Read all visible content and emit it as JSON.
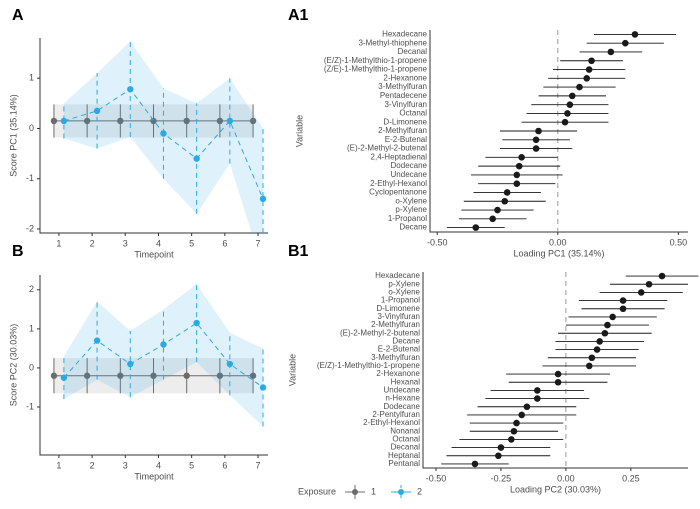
{
  "chart_data": [
    {
      "type": "line",
      "title": "A",
      "x_label": "Timepoint",
      "y_label": "Score PC1 (35.14%)",
      "x": [
        1,
        2,
        3,
        4,
        5,
        6,
        7
      ],
      "xlim": [
        0.43,
        7.3
      ],
      "xticks": [
        1,
        2,
        3,
        4,
        5,
        6,
        7
      ],
      "ylim": [
        -2.08,
        1.8
      ],
      "yticks": [
        -2,
        -1,
        0,
        1
      ],
      "series": [
        {
          "color": "#6b6b6b",
          "line_style": "solid",
          "values": [
            0.15,
            0.15,
            0.15,
            0.15,
            0.15,
            0.15,
            0.15
          ],
          "errors": [
            0.33,
            0.33,
            0.33,
            0.33,
            0.33,
            0.33,
            0.33
          ]
        },
        {
          "color": "#29abe2",
          "line_style": "dashed",
          "values": [
            0.15,
            0.35,
            0.78,
            -0.1,
            -0.6,
            0.15,
            -1.4
          ],
          "errors": [
            0.35,
            0.75,
            0.95,
            0.9,
            1.1,
            0.85,
            1.4
          ]
        }
      ]
    },
    {
      "type": "forest",
      "title": "A1",
      "x_label": "Loading PC1 (35.14%)",
      "y_label": "Variable",
      "color": "#1a1a1a",
      "categories": [
        "Hexadecane",
        "3-Methyl-thiophene",
        "Decanal",
        "(E/Z)-1-Methylthio-1-propene",
        "(Z/E)-1-Methylthio-1-propene",
        "2-Hexanone",
        "3-Methylfuran",
        "Pentadecene",
        "3-Vinylfuran",
        "Octanal",
        "D-Limonene",
        "2-Methylfuran",
        "E-2-Butenal",
        "(E)-2-Methyl-2-butenal",
        "2,4-Heptadienal",
        "Dodecane",
        "Undecane",
        "2-Ethyl-Hexanol",
        "Cyclopentanone",
        "o-Xylene",
        "p-Xylene",
        "1-Propanol",
        "Decane"
      ],
      "values": [
        0.32,
        0.28,
        0.22,
        0.14,
        0.13,
        0.12,
        0.09,
        0.06,
        0.05,
        0.04,
        0.03,
        -0.08,
        -0.09,
        -0.09,
        -0.15,
        -0.16,
        -0.17,
        -0.17,
        -0.21,
        -0.22,
        -0.25,
        -0.27,
        -0.34
      ],
      "errors": [
        0.17,
        0.16,
        0.13,
        0.13,
        0.15,
        0.16,
        0.15,
        0.14,
        0.16,
        0.17,
        0.18,
        0.16,
        0.14,
        0.15,
        0.15,
        0.17,
        0.19,
        0.16,
        0.14,
        0.17,
        0.15,
        0.14,
        0.12
      ],
      "xlim": [
        -0.53,
        0.54
      ],
      "xticks": [
        {
          "value": -0.5,
          "label": "-0.50"
        },
        {
          "value": 0,
          "label": "0.00"
        },
        {
          "value": 0.5,
          "label": "0.50"
        }
      ],
      "zero_line": true
    },
    {
      "type": "line",
      "title": "B",
      "x_label": "Timepoint",
      "y_label": "Score PC2 (30.03%)",
      "x": [
        1,
        2,
        3,
        4,
        5,
        6,
        7
      ],
      "xlim": [
        0.43,
        7.3
      ],
      "xticks": [
        1,
        2,
        3,
        4,
        5,
        6,
        7
      ],
      "ylim": [
        -2.23,
        2.38
      ],
      "yticks": [
        -1,
        0,
        1,
        2
      ],
      "series": [
        {
          "color": "#6b6b6b",
          "line_style": "solid",
          "values": [
            -0.2,
            -0.2,
            -0.2,
            -0.2,
            -0.2,
            -0.2,
            -0.2
          ],
          "errors": [
            0.45,
            0.45,
            0.45,
            0.45,
            0.45,
            0.45,
            0.45
          ]
        },
        {
          "color": "#29abe2",
          "line_style": "dashed",
          "values": [
            -0.25,
            0.7,
            0.1,
            0.6,
            1.15,
            0.1,
            -0.5
          ],
          "errors": [
            0.55,
            1.0,
            0.85,
            0.9,
            1.0,
            0.8,
            1.0
          ]
        }
      ]
    },
    {
      "type": "forest",
      "title": "B1",
      "x_label": "Loading PC2 (30.03%)",
      "y_label": "Variable",
      "color": "#1a1a1a",
      "categories": [
        "Hexadecane",
        "p-Xylene",
        "o-Xylene",
        "1-Propanol",
        "D-Limonene",
        "3-Vinylfuran",
        "2-Methylfuran",
        "(E)-2-Methyl-2-butenal",
        "Decane",
        "E-2-Butenal",
        "3-Methylfuran",
        "(E/Z)-1-Methylthio-1-propene",
        "2-Hexanone",
        "Hexanal",
        "Undecane",
        "n-Hexane",
        "Dodecane",
        "2-Pentylfuran",
        "2-Ethyl-Hexanol",
        "Nonanal",
        "Octanal",
        "Decanal",
        "Heptanal",
        "Pentanal"
      ],
      "values": [
        0.37,
        0.32,
        0.29,
        0.22,
        0.22,
        0.18,
        0.16,
        0.15,
        0.13,
        0.12,
        0.1,
        0.09,
        -0.03,
        -0.03,
        -0.11,
        -0.11,
        -0.15,
        -0.17,
        -0.19,
        -0.2,
        -0.21,
        -0.25,
        -0.26,
        -0.35
      ],
      "errors": [
        0.14,
        0.15,
        0.16,
        0.17,
        0.16,
        0.17,
        0.16,
        0.18,
        0.17,
        0.16,
        0.17,
        0.18,
        0.2,
        0.19,
        0.18,
        0.2,
        0.19,
        0.21,
        0.18,
        0.17,
        0.2,
        0.19,
        0.2,
        0.13
      ],
      "xlim": [
        -0.55,
        0.47
      ],
      "xticks": [
        {
          "value": -0.5,
          "label": "-0.50"
        },
        {
          "value": -0.25,
          "label": "-0.25"
        },
        {
          "value": 0,
          "label": "0.00"
        },
        {
          "value": 0.25,
          "label": "0.25"
        }
      ],
      "zero_line": true
    }
  ],
  "legend": {
    "title": "Exposure",
    "entries": [
      {
        "name": "1",
        "color": "#6b6b6b"
      },
      {
        "name": "2",
        "color": "#29abe2"
      }
    ]
  }
}
